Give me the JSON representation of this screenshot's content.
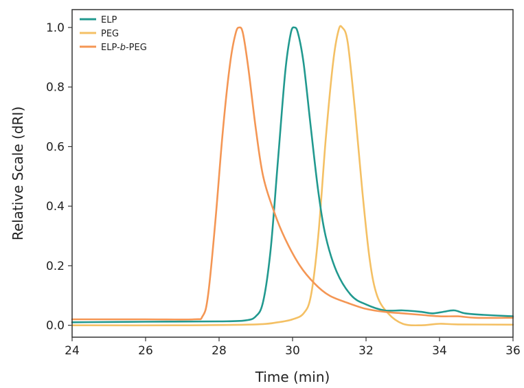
{
  "chart_data": {
    "type": "line",
    "xlabel": "Time (min)",
    "ylabel": "Relative Scale (dRI)",
    "xlim": [
      24,
      36
    ],
    "ylim": [
      -0.04,
      1.06
    ],
    "xticks": [
      24,
      26,
      28,
      30,
      32,
      34,
      36
    ],
    "yticks": [
      0.0,
      0.2,
      0.4,
      0.6,
      0.8,
      1.0
    ],
    "grid": false,
    "legend_position": "top-left",
    "series": [
      {
        "name": "ELP",
        "color": "#21998f",
        "points": [
          [
            24,
            0.01
          ],
          [
            26,
            0.012
          ],
          [
            28,
            0.013
          ],
          [
            28.7,
            0.016
          ],
          [
            29.0,
            0.03
          ],
          [
            29.2,
            0.08
          ],
          [
            29.4,
            0.25
          ],
          [
            29.6,
            0.55
          ],
          [
            29.8,
            0.85
          ],
          [
            29.95,
            0.98
          ],
          [
            30.05,
            1.0
          ],
          [
            30.15,
            0.98
          ],
          [
            30.3,
            0.88
          ],
          [
            30.5,
            0.66
          ],
          [
            30.7,
            0.45
          ],
          [
            30.9,
            0.3
          ],
          [
            31.2,
            0.18
          ],
          [
            31.6,
            0.1
          ],
          [
            32.0,
            0.07
          ],
          [
            32.5,
            0.05
          ],
          [
            33.0,
            0.05
          ],
          [
            33.5,
            0.045
          ],
          [
            33.8,
            0.04
          ],
          [
            34.1,
            0.045
          ],
          [
            34.4,
            0.05
          ],
          [
            34.7,
            0.04
          ],
          [
            35.2,
            0.035
          ],
          [
            36,
            0.03
          ]
        ]
      },
      {
        "name": "PEG",
        "color": "#f4c064",
        "points": [
          [
            24,
            0.0
          ],
          [
            27,
            0.0
          ],
          [
            29.0,
            0.003
          ],
          [
            29.6,
            0.01
          ],
          [
            30.0,
            0.02
          ],
          [
            30.3,
            0.04
          ],
          [
            30.5,
            0.1
          ],
          [
            30.7,
            0.3
          ],
          [
            30.9,
            0.62
          ],
          [
            31.1,
            0.88
          ],
          [
            31.25,
            0.99
          ],
          [
            31.35,
            1.0
          ],
          [
            31.5,
            0.95
          ],
          [
            31.7,
            0.72
          ],
          [
            31.9,
            0.45
          ],
          [
            32.1,
            0.22
          ],
          [
            32.3,
            0.1
          ],
          [
            32.6,
            0.04
          ],
          [
            33.0,
            0.005
          ],
          [
            33.5,
            0.0
          ],
          [
            34.0,
            0.005
          ],
          [
            34.5,
            0.003
          ],
          [
            36,
            0.002
          ]
        ]
      },
      {
        "name": "ELP-b-PEG",
        "name_parts": [
          "ELP-",
          "b",
          "-PEG"
        ],
        "color": "#f49654",
        "points": [
          [
            24,
            0.02
          ],
          [
            26,
            0.02
          ],
          [
            27.3,
            0.02
          ],
          [
            27.55,
            0.03
          ],
          [
            27.7,
            0.1
          ],
          [
            27.9,
            0.35
          ],
          [
            28.1,
            0.65
          ],
          [
            28.3,
            0.88
          ],
          [
            28.45,
            0.98
          ],
          [
            28.55,
            1.0
          ],
          [
            28.65,
            0.98
          ],
          [
            28.8,
            0.86
          ],
          [
            29.0,
            0.66
          ],
          [
            29.2,
            0.5
          ],
          [
            29.5,
            0.38
          ],
          [
            29.8,
            0.29
          ],
          [
            30.2,
            0.2
          ],
          [
            30.6,
            0.14
          ],
          [
            31.0,
            0.1
          ],
          [
            31.5,
            0.075
          ],
          [
            32.0,
            0.055
          ],
          [
            32.5,
            0.045
          ],
          [
            33.0,
            0.04
          ],
          [
            33.5,
            0.035
          ],
          [
            34.0,
            0.03
          ],
          [
            34.5,
            0.03
          ],
          [
            35.0,
            0.025
          ],
          [
            36,
            0.025
          ]
        ]
      }
    ]
  }
}
